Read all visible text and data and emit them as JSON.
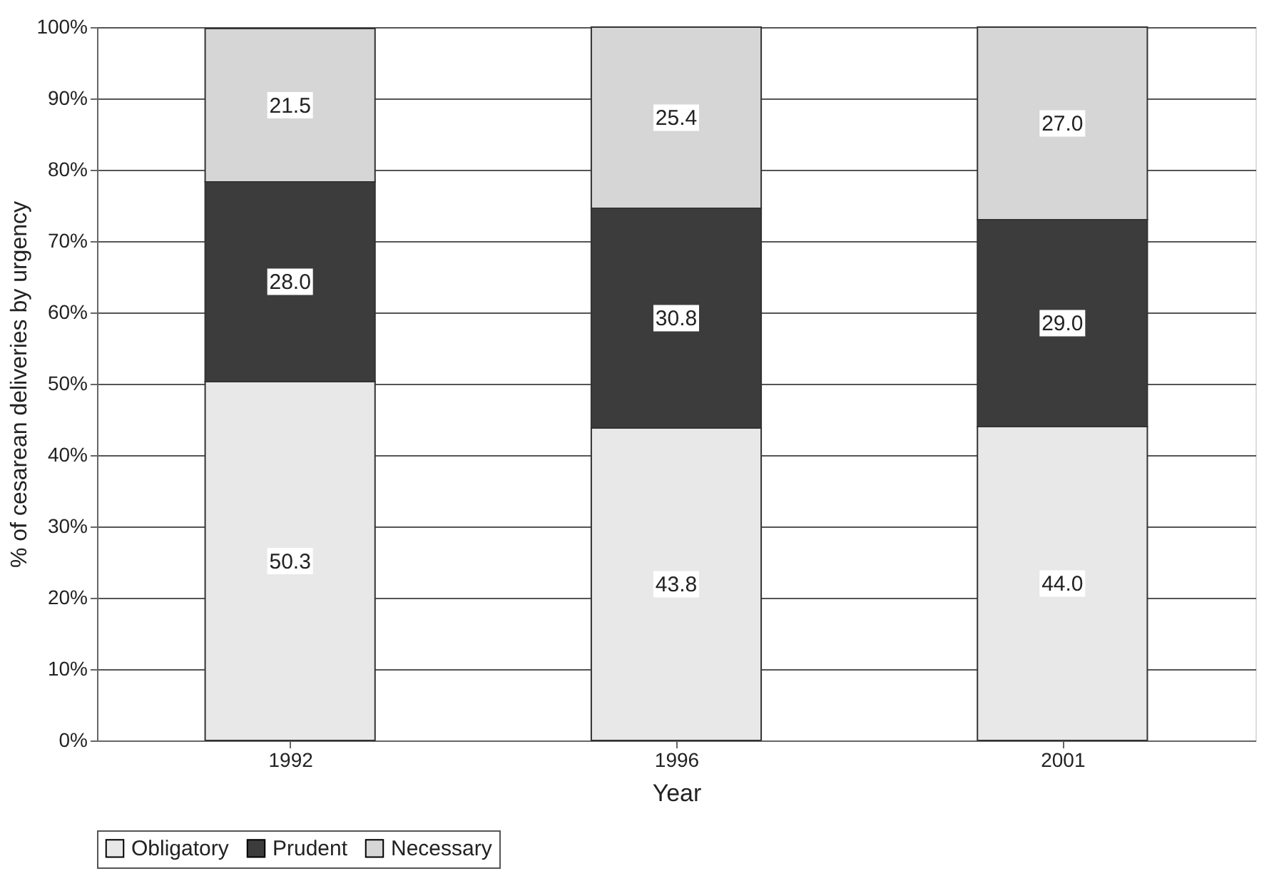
{
  "chart_data": {
    "type": "bar",
    "stacked": true,
    "xlabel": "Year",
    "ylabel": "% of cesarean deliveries by urgency",
    "categories": [
      "1992",
      "1996",
      "2001"
    ],
    "series": [
      {
        "name": "Obligatory",
        "color": "#e8e8e8",
        "values": [
          50.3,
          43.8,
          44.0
        ],
        "value_labels": [
          "50.3",
          "43.8",
          "44.0"
        ]
      },
      {
        "name": "Prudent",
        "color": "#3c3c3c",
        "values": [
          28.0,
          30.8,
          29.0
        ],
        "value_labels": [
          "28.0",
          "30.8",
          "29.0"
        ]
      },
      {
        "name": "Necessary",
        "color": "#d6d6d6",
        "values": [
          21.5,
          25.4,
          27.0
        ],
        "value_labels": [
          "21.5",
          "25.4",
          "27.0"
        ]
      }
    ],
    "ylim": [
      0,
      100
    ],
    "yticks": [
      {
        "value": 0,
        "label": "0%"
      },
      {
        "value": 10,
        "label": "10%"
      },
      {
        "value": 20,
        "label": "20%"
      },
      {
        "value": 30,
        "label": "30%"
      },
      {
        "value": 40,
        "label": "40%"
      },
      {
        "value": 50,
        "label": "50%"
      },
      {
        "value": 60,
        "label": "60%"
      },
      {
        "value": 70,
        "label": "70%"
      },
      {
        "value": 80,
        "label": "80%"
      },
      {
        "value": 90,
        "label": "90%"
      },
      {
        "value": 100,
        "label": "100%"
      }
    ],
    "grid": "y",
    "legend": "bottom"
  }
}
